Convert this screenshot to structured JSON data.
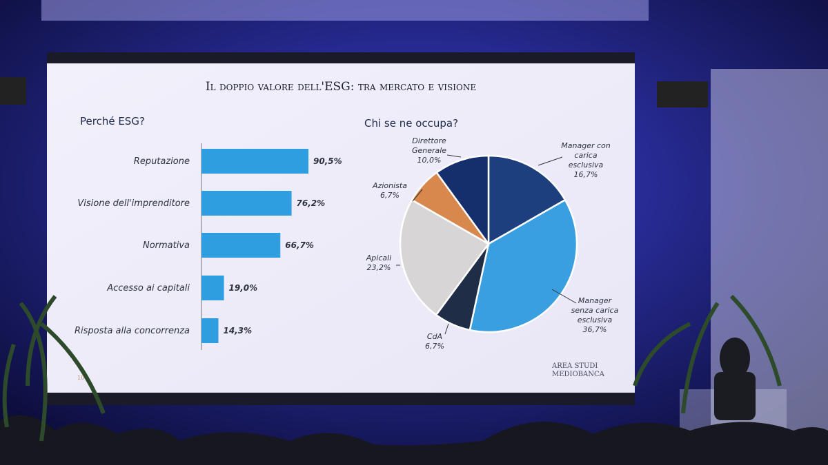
{
  "slide": {
    "title": "Il doppio valore dell'ESG: tra mercato e visione",
    "footer": "AREA STUDI MEDIOBANCA",
    "page": "10"
  },
  "chart_data": [
    {
      "type": "hbar",
      "title": "Perché ESG?",
      "categories": [
        "Reputazione",
        "Visione dell'imprenditore",
        "Normativa",
        "Accesso ai capitali",
        "Risposta alla concorrenza"
      ],
      "values": [
        90.5,
        76.2,
        66.7,
        19.0,
        14.3
      ],
      "value_labels": [
        "90,5%",
        "76,2%",
        "66,7%",
        "19,0%",
        "14,3%"
      ],
      "color": "#2e9ee0"
    },
    {
      "type": "pie",
      "title": "Chi se ne occupa?",
      "categories": [
        "Manager con carica esclusiva",
        "Manager senza carica esclusiva",
        "CdA",
        "Apicali",
        "Azionista",
        "Direttore Generale"
      ],
      "values": [
        16.7,
        36.7,
        6.7,
        23.2,
        6.7,
        10.0
      ],
      "value_labels": [
        "16,7%",
        "36,7%",
        "6,7%",
        "23,2%",
        "6,7%",
        "10,0%"
      ],
      "colors": [
        "#1d3f7e",
        "#3a9fe0",
        "#1f2d47",
        "#d8d5d6",
        "#d8884c",
        "#152f6c"
      ]
    }
  ]
}
